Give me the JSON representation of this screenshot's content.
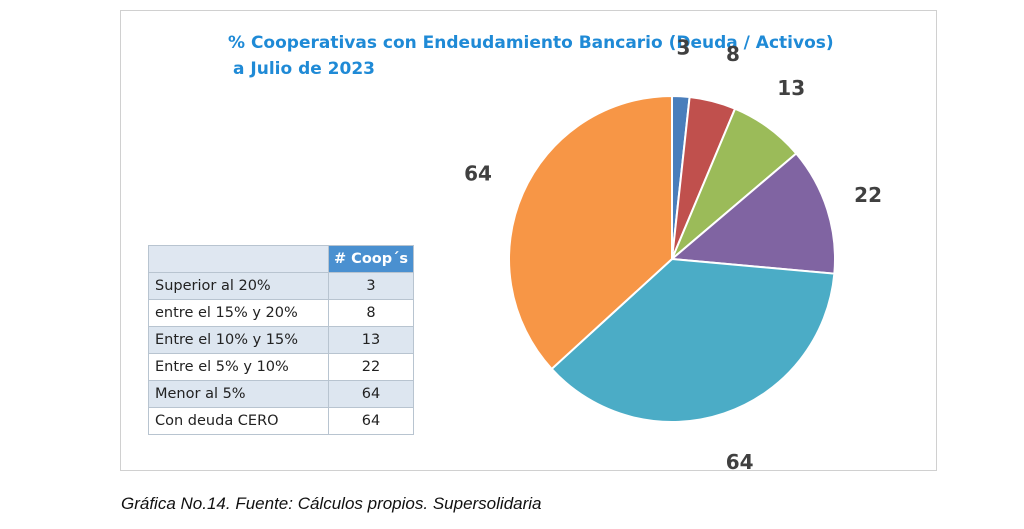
{
  "chart_data": {
    "type": "pie",
    "title_line1": "% Cooperativas con Endeudamiento Bancario (Deuda / Activos)",
    "title_line2": "a Julio de 2023",
    "slices": [
      {
        "label": "Superior al 20%",
        "value": 3,
        "color": "#4a7ebb"
      },
      {
        "label": "entre el 15% y 20%",
        "value": 8,
        "color": "#c0504d"
      },
      {
        "label": "Entre el 10% y 15%",
        "value": 13,
        "color": "#9bbb59"
      },
      {
        "label": "Entre el 5% y 10%",
        "value": 22,
        "color": "#8064a2"
      },
      {
        "label": "Menor al 5%",
        "value": 64,
        "color": "#4bacc6"
      },
      {
        "label": "Con deuda CERO",
        "value": 64,
        "color": "#f79646"
      }
    ],
    "start_angle_deg": 0,
    "direction": "clockwise"
  },
  "table": {
    "header_value": "# Coop´s",
    "rows": [
      {
        "label": "Superior al 20%",
        "value": "3"
      },
      {
        "label": "entre el 15% y 20%",
        "value": "8"
      },
      {
        "label": "Entre el 10% y 15%",
        "value": "13"
      },
      {
        "label": "Entre el 5% y 10%",
        "value": "22"
      },
      {
        "label": "Menor al 5%",
        "value": "64"
      },
      {
        "label": "Con deuda CERO",
        "value": "64"
      }
    ]
  },
  "caption": "Gráfica No.14. Fuente: Cálculos propios. Supersolidaria"
}
